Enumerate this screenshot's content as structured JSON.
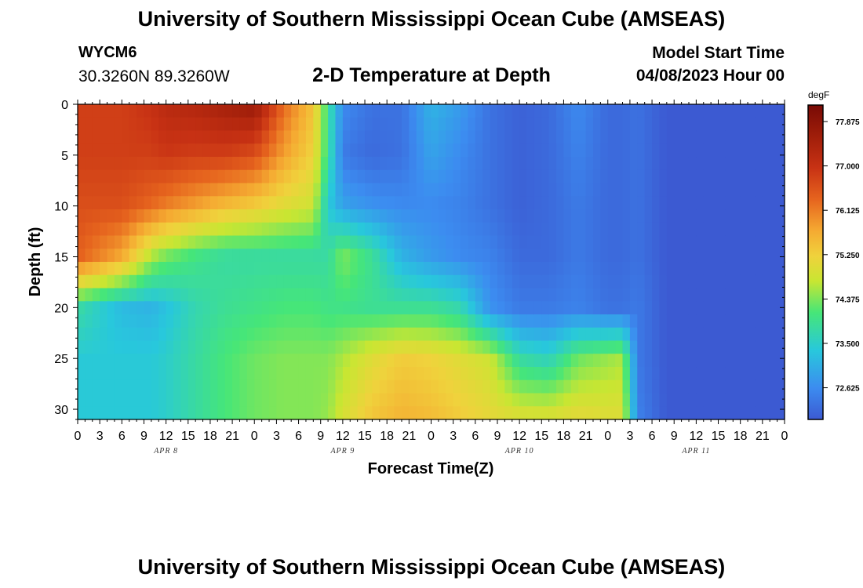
{
  "header": {
    "title": "University of Southern Mississippi Ocean Cube (AMSEAS)",
    "station_id": "WYCM6",
    "coordinates": "30.3260N  89.3260W",
    "subtitle": "2-D Temperature at Depth",
    "model_start_label": "Model Start Time",
    "model_start_value": "04/08/2023 Hour 00"
  },
  "footer": {
    "title": "University of Southern Mississippi Ocean Cube (AMSEAS)"
  },
  "chart_data": {
    "type": "heatmap",
    "title": "2-D Temperature at Depth",
    "xlabel": "Forecast Time(Z)",
    "ylabel": "Depth (ft)",
    "x_range_hours": [
      0,
      96
    ],
    "x_tick_step_hours": 3,
    "x_tick_labels": [
      "0",
      "3",
      "6",
      "9",
      "12",
      "15",
      "18",
      "21",
      "0",
      "3",
      "6",
      "9",
      "12",
      "15",
      "18",
      "21",
      "0",
      "3",
      "6",
      "9",
      "12",
      "15",
      "18",
      "21",
      "0",
      "3",
      "6",
      "9",
      "12",
      "15",
      "18",
      "21",
      "0"
    ],
    "date_labels": [
      {
        "label": "APR 8",
        "hour": 12
      },
      {
        "label": "APR 9",
        "hour": 36
      },
      {
        "label": "APR 10",
        "hour": 60
      },
      {
        "label": "APR 11",
        "hour": 84
      }
    ],
    "ylim": [
      0,
      31
    ],
    "y_ticks": [
      0,
      5,
      10,
      15,
      20,
      25,
      30
    ],
    "colorbar": {
      "unit": "degF",
      "min": 72.0,
      "max": 78.2,
      "tick_values": [
        77.875,
        77.0,
        76.125,
        75.25,
        74.375,
        73.5,
        72.625
      ],
      "tick_labels": [
        "77.875",
        "77.000",
        "76.125",
        "75.250",
        "74.375",
        "73.500",
        "72.625"
      ]
    },
    "colormap": [
      {
        "t": 0.0,
        "color": "#3c5ad2"
      },
      {
        "t": 0.1,
        "color": "#3c8cf0"
      },
      {
        "t": 0.22,
        "color": "#28c8dc"
      },
      {
        "t": 0.34,
        "color": "#46e678"
      },
      {
        "t": 0.44,
        "color": "#c8e632"
      },
      {
        "t": 0.52,
        "color": "#f0d23c"
      },
      {
        "t": 0.6,
        "color": "#f5aa32"
      },
      {
        "t": 0.7,
        "color": "#e6641e"
      },
      {
        "t": 0.8,
        "color": "#c83214"
      },
      {
        "t": 0.9,
        "color": "#a01e0a"
      },
      {
        "t": 1.0,
        "color": "#780a05"
      }
    ],
    "grid_times_hours": [
      0,
      6,
      10,
      12,
      16,
      20,
      24,
      28,
      32,
      34,
      36,
      40,
      44,
      48,
      52,
      56,
      60,
      64,
      68,
      72,
      74,
      76,
      80,
      84,
      88,
      92,
      96
    ],
    "grid_depths_ft": [
      0,
      5,
      10,
      15,
      20,
      25,
      31
    ],
    "temperature_degF": [
      [
        76.8,
        76.8,
        77.0,
        77.2,
        77.3,
        77.5,
        77.7,
        76.3,
        75.4,
        73.9,
        72.6,
        72.3,
        72.3,
        73.1,
        72.8,
        72.3,
        72.1,
        72.2,
        72.6,
        72.2,
        72.2,
        72.3,
        72.0,
        72.0,
        72.0,
        72.0,
        72.0
      ],
      [
        76.8,
        76.8,
        76.8,
        76.9,
        76.8,
        76.8,
        76.6,
        75.8,
        75.2,
        73.9,
        72.4,
        72.2,
        72.3,
        72.9,
        72.6,
        72.3,
        72.1,
        72.2,
        72.5,
        72.2,
        72.2,
        72.3,
        72.0,
        72.0,
        72.0,
        72.0,
        72.0
      ],
      [
        76.6,
        76.6,
        76.3,
        76.1,
        75.8,
        75.5,
        75.3,
        75.0,
        74.8,
        73.4,
        72.9,
        72.7,
        72.6,
        72.6,
        72.5,
        72.3,
        72.1,
        72.2,
        72.4,
        72.2,
        72.2,
        72.3,
        72.0,
        72.0,
        72.0,
        72.0,
        72.0
      ],
      [
        76.4,
        75.7,
        74.6,
        74.3,
        74.0,
        73.8,
        73.8,
        73.8,
        73.8,
        73.8,
        74.4,
        73.9,
        73.1,
        72.8,
        72.6,
        72.5,
        72.2,
        72.2,
        72.4,
        72.2,
        72.2,
        72.3,
        72.0,
        72.0,
        72.0,
        72.0,
        72.0
      ],
      [
        73.8,
        73.2,
        73.1,
        73.3,
        73.7,
        73.9,
        74.0,
        74.1,
        74.1,
        74.0,
        74.0,
        73.9,
        73.9,
        73.9,
        73.7,
        72.7,
        72.4,
        72.4,
        72.5,
        72.3,
        72.3,
        72.4,
        72.0,
        72.0,
        72.0,
        72.0,
        72.0
      ],
      [
        73.4,
        73.4,
        73.4,
        73.5,
        73.8,
        74.1,
        74.3,
        74.4,
        74.4,
        74.4,
        74.6,
        75.0,
        75.3,
        75.2,
        75.0,
        74.8,
        73.8,
        73.6,
        74.3,
        74.5,
        74.6,
        72.4,
        72.0,
        72.0,
        72.0,
        72.0,
        72.0
      ],
      [
        73.4,
        73.4,
        73.4,
        73.5,
        73.8,
        74.1,
        74.3,
        74.4,
        74.4,
        74.5,
        74.9,
        75.4,
        75.6,
        75.5,
        75.3,
        75.1,
        75.0,
        75.0,
        75.1,
        75.0,
        75.0,
        72.5,
        72.0,
        72.0,
        72.0,
        72.0,
        72.0
      ]
    ]
  }
}
